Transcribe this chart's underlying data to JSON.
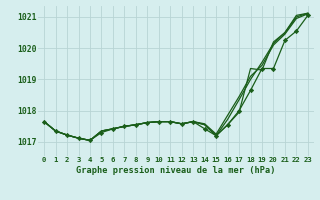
{
  "title": "Graphe pression niveau de la mer (hPa)",
  "background_color": "#d6eeee",
  "grid_color": "#b8d4d4",
  "line_color": "#1a5e1a",
  "xlim": [
    -0.5,
    23.5
  ],
  "ylim": [
    1016.55,
    1021.35
  ],
  "yticks": [
    1017,
    1018,
    1019,
    1020,
    1021
  ],
  "xticks": [
    0,
    1,
    2,
    3,
    4,
    5,
    6,
    7,
    8,
    9,
    10,
    11,
    12,
    13,
    14,
    15,
    16,
    17,
    18,
    19,
    20,
    21,
    22,
    23
  ],
  "series": {
    "line1": [
      1017.65,
      1017.35,
      1017.22,
      1017.12,
      1017.05,
      1017.35,
      1017.42,
      1017.5,
      1017.55,
      1017.62,
      1017.65,
      1017.65,
      1017.58,
      1017.65,
      1017.58,
      1017.25,
      1017.85,
      1018.45,
      1019.1,
      1019.45,
      1020.1,
      1020.45,
      1020.95,
      1021.1
    ],
    "line2": [
      1017.65,
      1017.35,
      1017.22,
      1017.12,
      1017.05,
      1017.35,
      1017.42,
      1017.5,
      1017.55,
      1017.62,
      1017.65,
      1017.65,
      1017.58,
      1017.65,
      1017.55,
      1017.2,
      1017.72,
      1018.35,
      1019.0,
      1019.55,
      1020.15,
      1020.5,
      1021.0,
      1021.12
    ],
    "line3": [
      1017.65,
      1017.35,
      1017.22,
      1017.12,
      1017.05,
      1017.35,
      1017.42,
      1017.5,
      1017.55,
      1017.62,
      1017.65,
      1017.65,
      1017.58,
      1017.65,
      1017.55,
      1017.2,
      1017.55,
      1017.95,
      1019.35,
      1019.3,
      1020.2,
      1020.5,
      1021.05,
      1021.12
    ],
    "line4_markers": [
      1017.65,
      1017.35,
      1017.22,
      1017.12,
      1017.05,
      1017.3,
      1017.42,
      1017.5,
      1017.55,
      1017.62,
      1017.65,
      1017.65,
      1017.58,
      1017.65,
      1017.42,
      1017.2,
      1017.55,
      1018.0,
      1018.65,
      1019.35,
      1019.35,
      1020.25,
      1020.55,
      1021.05
    ]
  }
}
